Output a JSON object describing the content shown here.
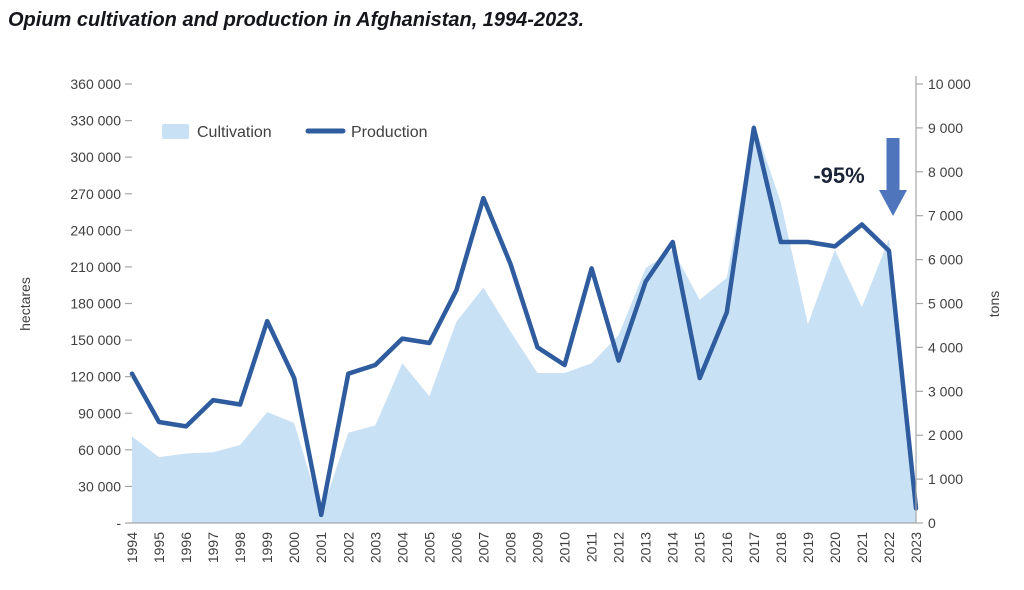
{
  "title": "Opium cultivation and production in Afghanistan, 1994-2023.",
  "legend": {
    "cultivation_label": "Cultivation",
    "production_label": "Production"
  },
  "annotation": {
    "label": "-95%"
  },
  "colors": {
    "area": "#c9e1f5",
    "line": "#2e5c9e",
    "arrow": "#4f76bc",
    "axis": "#a6a6a6",
    "tick_text": "#404040",
    "annotation_text": "#1b2436"
  },
  "chart_data": {
    "type": "area",
    "title": "Opium cultivation and production in Afghanistan, 1994-2023.",
    "x": [
      "1994",
      "1995",
      "1996",
      "1997",
      "1998",
      "1999",
      "2000",
      "2001",
      "2002",
      "2003",
      "2004",
      "2005",
      "2006",
      "2007",
      "2008",
      "2009",
      "2010",
      "2011",
      "2012",
      "2013",
      "2014",
      "2015",
      "2016",
      "2017",
      "2018",
      "2019",
      "2020",
      "2021",
      "2022",
      "2023"
    ],
    "series": [
      {
        "name": "Cultivation",
        "type": "area",
        "axis": "left",
        "unit": "hectares",
        "values": [
          71000,
          54000,
          57000,
          58000,
          64000,
          91000,
          82000,
          8000,
          74000,
          80000,
          131000,
          104000,
          165000,
          193000,
          157000,
          123000,
          123000,
          131000,
          154000,
          209000,
          224000,
          183000,
          201000,
          328000,
          263000,
          163000,
          224000,
          177000,
          233000,
          11000
        ]
      },
      {
        "name": "Production",
        "type": "line",
        "axis": "right",
        "unit": "tons",
        "values": [
          3400,
          2300,
          2200,
          2800,
          2700,
          4600,
          3300,
          185,
          3400,
          3600,
          4200,
          4100,
          5300,
          7400,
          5900,
          4000,
          3600,
          5800,
          3700,
          5500,
          6400,
          3300,
          4800,
          9000,
          6400,
          6400,
          6300,
          6800,
          6200,
          333
        ]
      }
    ],
    "left_axis": {
      "label": "hectares",
      "min": 0,
      "max": 360000,
      "tick_labels": [
        "360 000",
        "330 000",
        "300 000",
        "270 000",
        "240 000",
        "210 000",
        "180 000",
        "150 000",
        "120 000",
        "90 000",
        "60 000",
        "30 000",
        "-"
      ]
    },
    "right_axis": {
      "label": "tons",
      "min": 0,
      "max": 10000,
      "tick_labels": [
        "10 000",
        "9 000",
        "8 000",
        "7 000",
        "6 000",
        "5 000",
        "4 000",
        "3 000",
        "2 000",
        "1 000",
        "0"
      ]
    },
    "legend_position": "top-left-inside",
    "grid": false,
    "annotation": "-95%"
  }
}
